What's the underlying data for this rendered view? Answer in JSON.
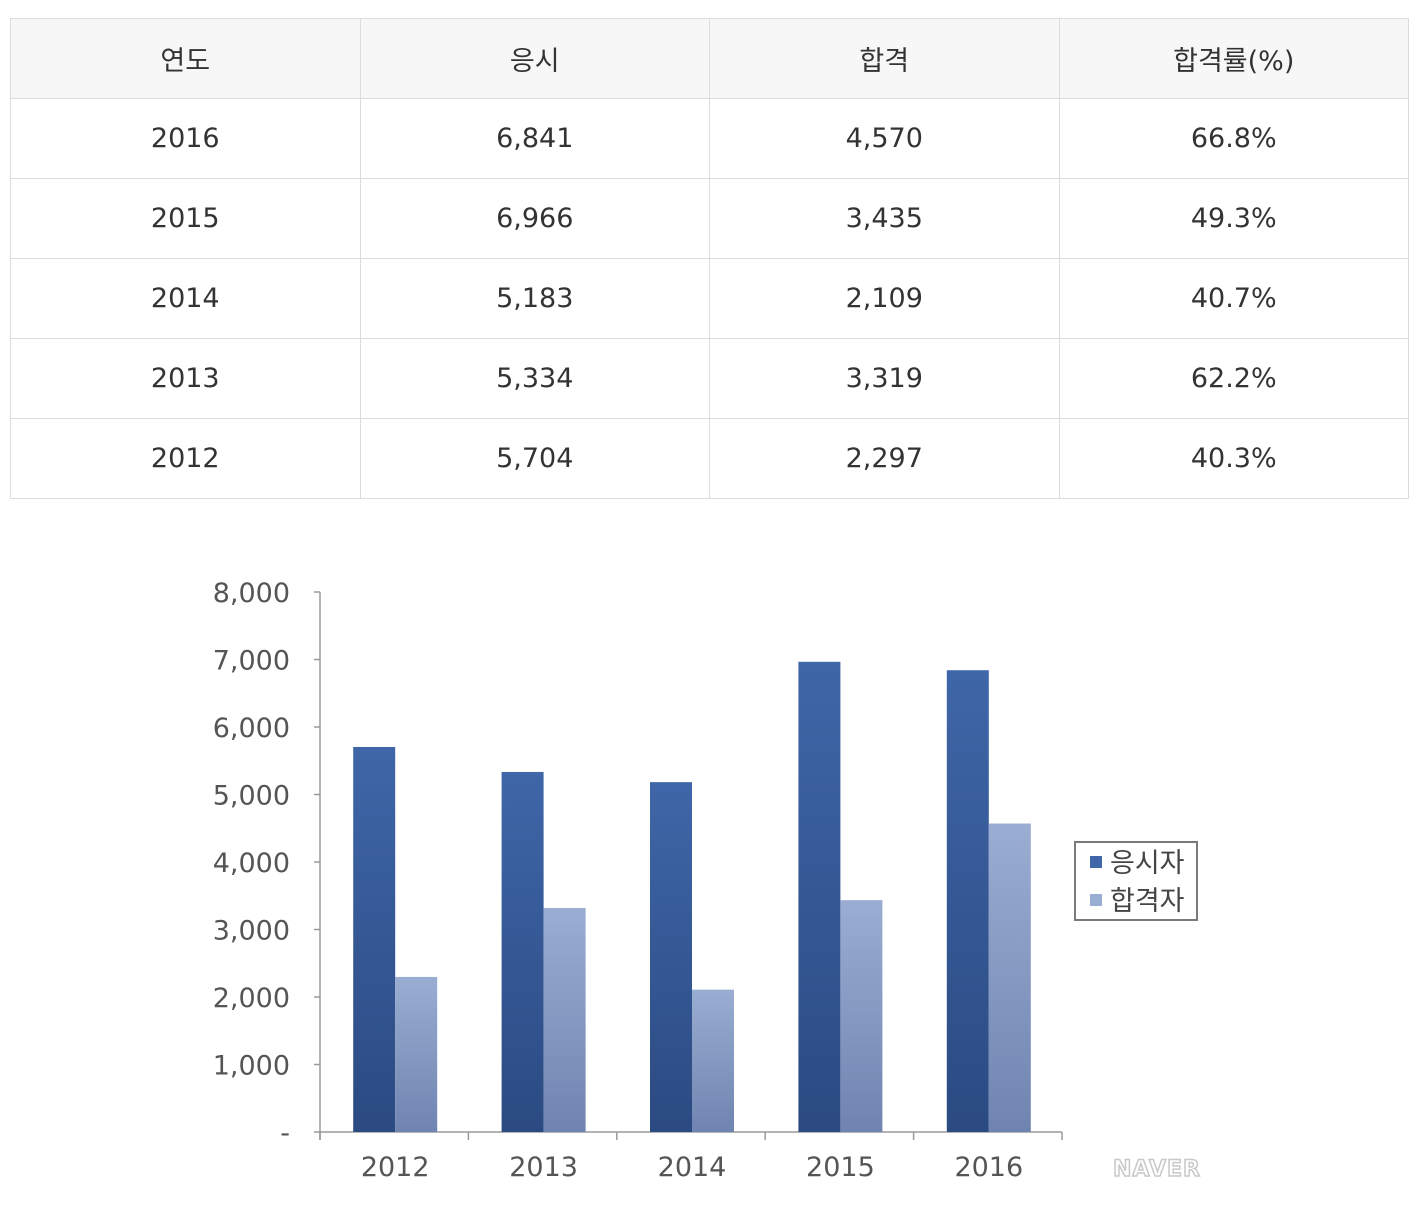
{
  "table": {
    "headers": [
      "연도",
      "응시",
      "합격",
      "합격률(%)"
    ],
    "rows": [
      [
        "2016",
        "6,841",
        "4,570",
        "66.8%"
      ],
      [
        "2015",
        "6,966",
        "3,435",
        "49.3%"
      ],
      [
        "2014",
        "5,183",
        "2,109",
        "40.7%"
      ],
      [
        "2013",
        "5,334",
        "3,319",
        "62.2%"
      ],
      [
        "2012",
        "5,704",
        "2,297",
        "40.3%"
      ]
    ]
  },
  "chart_data": {
    "type": "bar",
    "categories": [
      "2012",
      "2013",
      "2014",
      "2015",
      "2016"
    ],
    "series": [
      {
        "name": "응시자",
        "values": [
          5704,
          5334,
          5183,
          6966,
          6841
        ],
        "color": "#3f66a8",
        "color_dark": "#2b4a82"
      },
      {
        "name": "합격자",
        "values": [
          2297,
          3319,
          2109,
          3435,
          4570
        ],
        "color": "#9aadd2",
        "color_dark": "#6f84b0"
      }
    ],
    "yticks": [
      "-",
      "1,000",
      "2,000",
      "3,000",
      "4,000",
      "5,000",
      "6,000",
      "7,000",
      "8,000"
    ],
    "ylim": [
      0,
      8000
    ],
    "legend_position": "right",
    "grid": false,
    "watermark": "NAVER"
  }
}
